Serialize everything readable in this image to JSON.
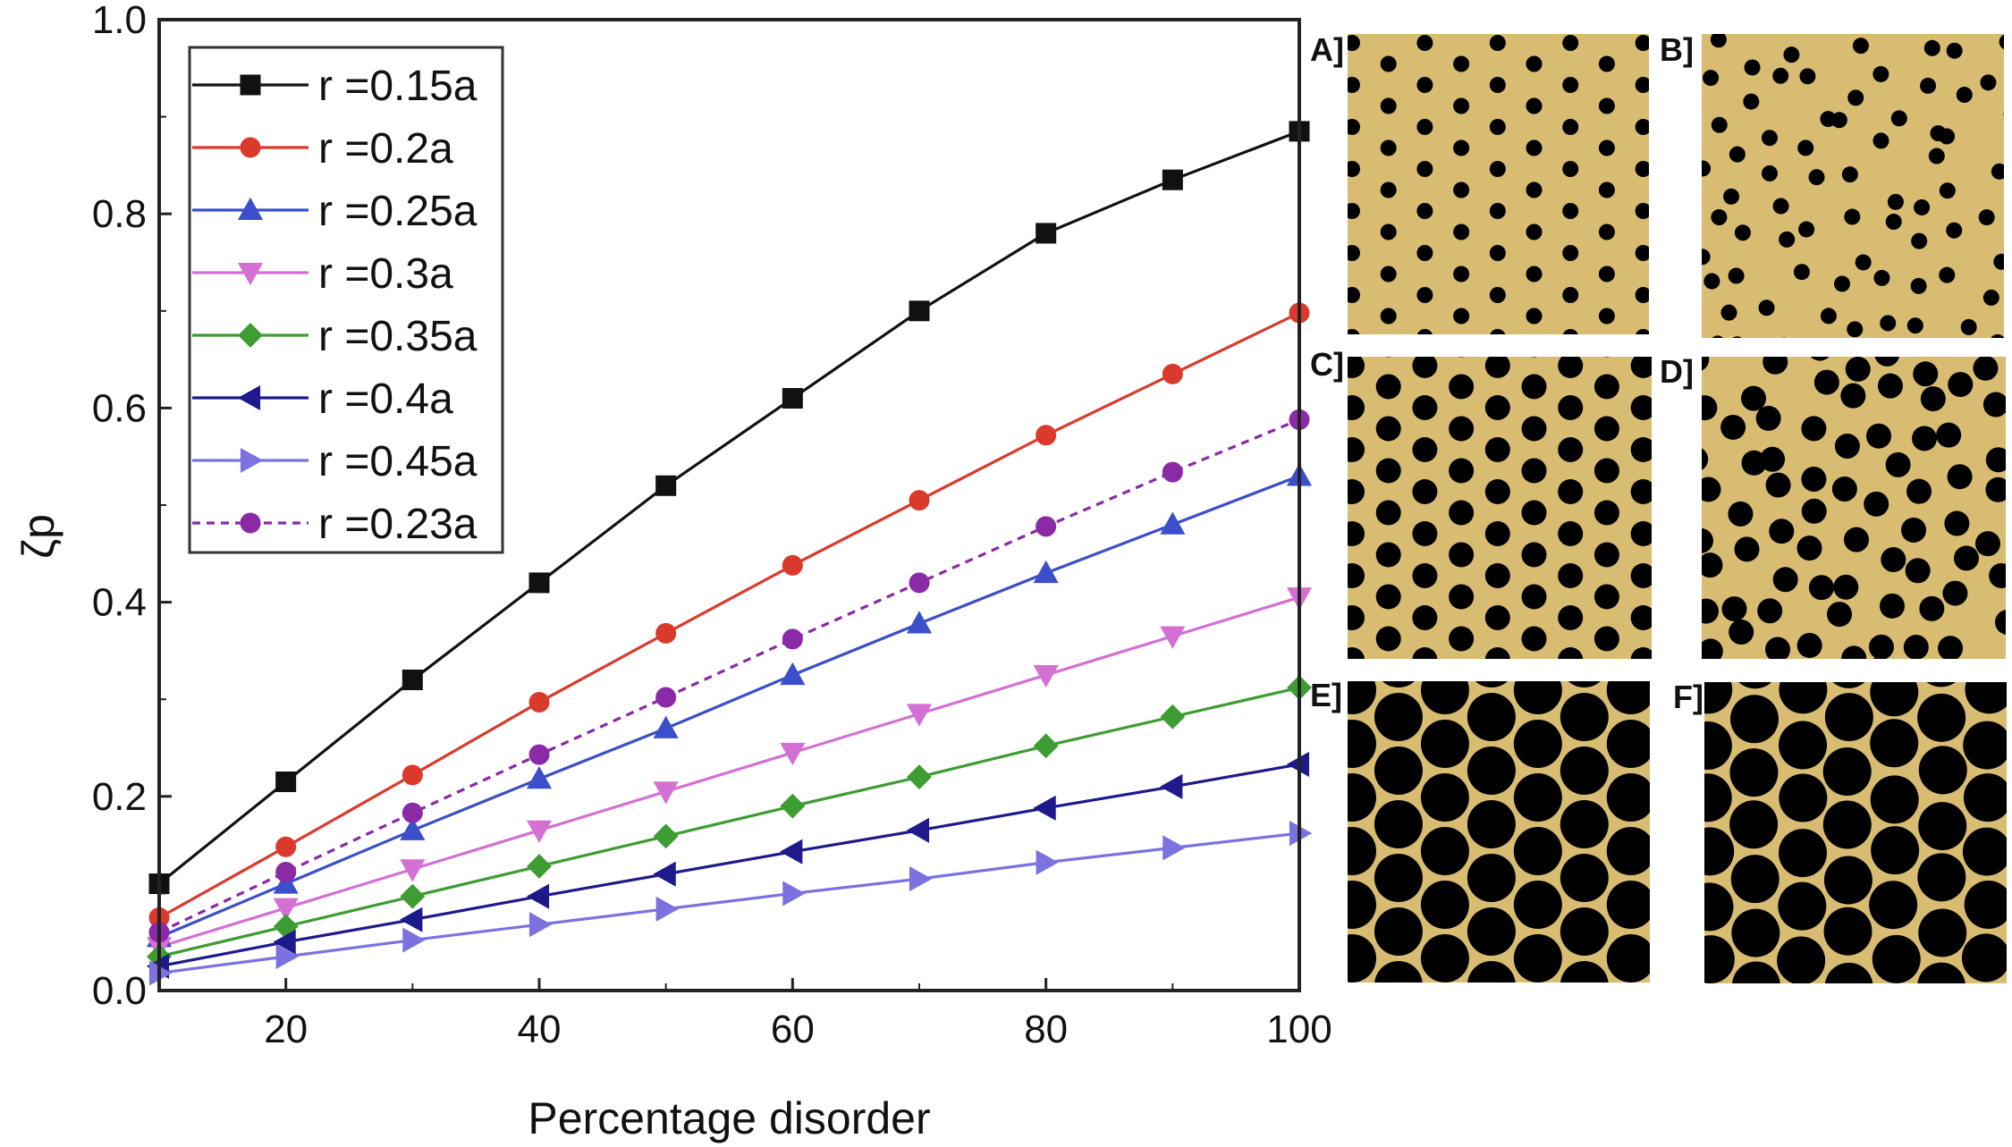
{
  "chart_data": {
    "type": "line",
    "xlabel": "Percentage disorder",
    "ylabel": "ζp",
    "xlim": [
      10,
      100
    ],
    "ylim": [
      0.0,
      1.0
    ],
    "x_ticks": [
      20,
      40,
      60,
      80,
      100
    ],
    "y_ticks": [
      0.0,
      0.2,
      0.4,
      0.6,
      0.8,
      1.0
    ],
    "y_tick_labels": [
      "0.0",
      "0.2",
      "0.4",
      "0.6",
      "0.8",
      "1.0"
    ],
    "legend_position": "top-left",
    "grid": false,
    "x": [
      10,
      20,
      30,
      40,
      50,
      60,
      70,
      80,
      90,
      100
    ],
    "series": [
      {
        "name": "r =0.15a",
        "color": "#111111",
        "marker": "square",
        "dash": false,
        "values": [
          0.11,
          0.215,
          0.32,
          0.42,
          0.52,
          0.61,
          0.7,
          0.78,
          0.835,
          0.885
        ]
      },
      {
        "name": "r =0.2a",
        "color": "#d93a2b",
        "marker": "circle",
        "dash": false,
        "values": [
          0.075,
          0.148,
          0.222,
          0.297,
          0.368,
          0.438,
          0.505,
          0.572,
          0.635,
          0.698
        ]
      },
      {
        "name": "r =0.25a",
        "color": "#3a4fc9",
        "marker": "triangle-up",
        "dash": false,
        "values": [
          0.055,
          0.11,
          0.165,
          0.218,
          0.27,
          0.325,
          0.378,
          0.43,
          0.48,
          0.53
        ]
      },
      {
        "name": "r =0.3a",
        "color": "#d46fd4",
        "marker": "triangle-down",
        "dash": false,
        "values": [
          0.045,
          0.085,
          0.125,
          0.165,
          0.205,
          0.245,
          0.285,
          0.325,
          0.365,
          0.405
        ]
      },
      {
        "name": "r =0.35a",
        "color": "#3d9c32",
        "marker": "diamond",
        "dash": false,
        "values": [
          0.035,
          0.066,
          0.097,
          0.128,
          0.159,
          0.19,
          0.22,
          0.252,
          0.282,
          0.312
        ]
      },
      {
        "name": "r =0.4a",
        "color": "#1e1a8c",
        "marker": "triangle-left",
        "dash": false,
        "values": [
          0.025,
          0.05,
          0.073,
          0.097,
          0.12,
          0.143,
          0.165,
          0.188,
          0.21,
          0.233
        ]
      },
      {
        "name": "r =0.45a",
        "color": "#7b72e0",
        "marker": "triangle-right",
        "dash": false,
        "values": [
          0.018,
          0.035,
          0.052,
          0.068,
          0.084,
          0.1,
          0.115,
          0.132,
          0.147,
          0.162
        ]
      },
      {
        "name": "r =0.23a",
        "color": "#8a2aa6",
        "marker": "circle",
        "dash": true,
        "values": [
          0.06,
          0.122,
          0.183,
          0.243,
          0.302,
          0.362,
          0.42,
          0.478,
          0.534,
          0.588
        ]
      }
    ]
  },
  "panels": [
    {
      "label": "A]",
      "pattern": "ordered-small-holes",
      "fill": "#d8bc72",
      "hole": "#000000"
    },
    {
      "label": "B]",
      "pattern": "disordered-small-holes",
      "fill": "#d8bc72",
      "hole": "#000000"
    },
    {
      "label": "C]",
      "pattern": "ordered-medium-holes",
      "fill": "#d8bc72",
      "hole": "#000000"
    },
    {
      "label": "D]",
      "pattern": "disordered-medium-holes",
      "fill": "#d8bc72",
      "hole": "#000000"
    },
    {
      "label": "E]",
      "pattern": "ordered-large-holes",
      "fill": "#d8bc72",
      "hole": "#000000"
    },
    {
      "label": "F]",
      "pattern": "disordered-large-holes",
      "fill": "#d8bc72",
      "hole": "#000000"
    }
  ]
}
